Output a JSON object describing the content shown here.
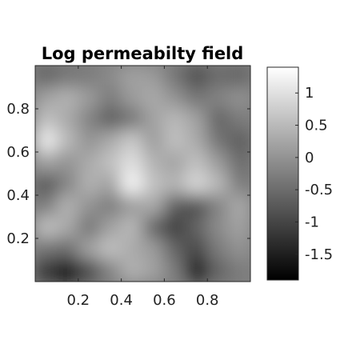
{
  "chart_data": {
    "type": "heatmap",
    "title": "Log permeabilty field",
    "xlabel": "",
    "ylabel": "",
    "xlim": [
      0,
      1
    ],
    "ylim": [
      0,
      1
    ],
    "x_ticks": [
      {
        "value": 0.2,
        "label": "0.2"
      },
      {
        "value": 0.4,
        "label": "0.4"
      },
      {
        "value": 0.6,
        "label": "0.6"
      },
      {
        "value": 0.8,
        "label": "0.8"
      }
    ],
    "y_ticks": [
      {
        "value": 0.2,
        "label": "0.2"
      },
      {
        "value": 0.4,
        "label": "0.4"
      },
      {
        "value": 0.6,
        "label": "0.6"
      },
      {
        "value": 0.8,
        "label": "0.8"
      }
    ],
    "colormap": "gray",
    "color_range": [
      -1.9,
      1.4
    ],
    "colorbar": {
      "placement": "right",
      "ticks": [
        {
          "value": 1,
          "label": "1"
        },
        {
          "value": 0.5,
          "label": "0.5"
        },
        {
          "value": 0,
          "label": "0"
        },
        {
          "value": -0.5,
          "label": "-0.5"
        },
        {
          "value": -1,
          "label": "-1"
        },
        {
          "value": -1.5,
          "label": "-1.5"
        }
      ]
    },
    "grid": false,
    "field_values": {
      "x": [
        0.05,
        0.15,
        0.25,
        0.35,
        0.45,
        0.55,
        0.65,
        0.75,
        0.85,
        0.95
      ],
      "y": [
        0.95,
        0.85,
        0.75,
        0.65,
        0.55,
        0.45,
        0.35,
        0.25,
        0.15,
        0.05
      ],
      "z": [
        [
          -0.6,
          -0.4,
          -0.3,
          -0.1,
          0.2,
          0.1,
          -0.4,
          -0.9,
          -0.5,
          -0.6
        ],
        [
          0.2,
          0.4,
          0.1,
          -0.3,
          0.1,
          0.3,
          0.0,
          -0.4,
          -0.2,
          0.0
        ],
        [
          0.6,
          0.3,
          -0.2,
          -0.7,
          -0.4,
          0.2,
          0.5,
          0.2,
          -0.6,
          -0.3
        ],
        [
          1.2,
          0.5,
          0.0,
          0.3,
          0.7,
          0.1,
          0.6,
          0.3,
          -0.4,
          -0.7
        ],
        [
          0.2,
          0.0,
          0.3,
          0.6,
          1.0,
          0.4,
          0.2,
          0.6,
          0.1,
          -0.5
        ],
        [
          -0.8,
          -0.2,
          0.4,
          0.2,
          1.3,
          0.6,
          0.4,
          0.9,
          0.5,
          -0.3
        ],
        [
          -0.3,
          0.4,
          0.0,
          -0.3,
          0.1,
          0.3,
          -0.7,
          -0.9,
          -0.2,
          0.3
        ],
        [
          0.6,
          0.3,
          -0.4,
          0.2,
          0.5,
          -0.6,
          -1.1,
          -0.6,
          -0.1,
          0.2
        ],
        [
          -0.4,
          -0.5,
          0.2,
          0.6,
          0.3,
          0.1,
          -0.6,
          -1.0,
          -0.3,
          0.0
        ],
        [
          -1.2,
          -1.9,
          -1.0,
          -0.2,
          0.4,
          0.2,
          -0.3,
          -1.7,
          -0.6,
          -0.3
        ]
      ]
    }
  }
}
